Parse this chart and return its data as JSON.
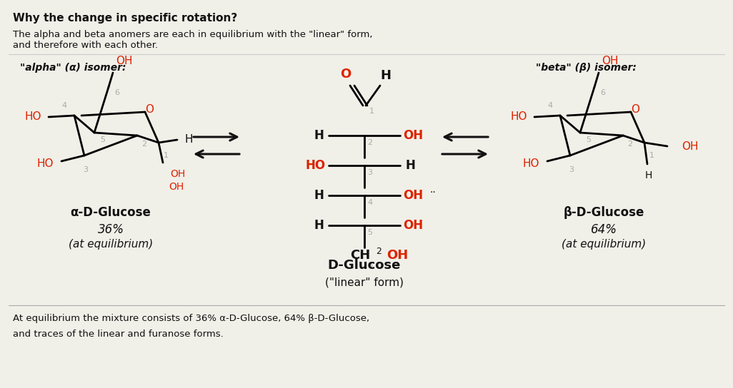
{
  "bg_color": "#f0efe8",
  "title": "Why the change in specific rotation?",
  "sub1": "The alpha and beta anomers are each in equilibrium with the \"linear\" form,",
  "sub2": "and therefore with each other.",
  "alpha_header": "\"alpha\" (α) isomer:",
  "beta_header": "\"beta\" (β) isomer:",
  "alpha_name": "α-D-Glucose",
  "beta_name": "β-D-Glucose",
  "linear_name": "D-Glucose",
  "linear_sub": "(\"linear\" form)",
  "alpha_pct": "36%",
  "alpha_eq": "(at equilibrium)",
  "beta_pct": "64%",
  "beta_eq": "(at equilibrium)",
  "bottom1": "At equilibrium the mixture consists of 36% α-D-Glucose, 64% β-D-Glucose,",
  "bottom2": "and traces of the linear and furanose forms.",
  "red": "#dd2200",
  "black": "#111111",
  "gray": "#aaaaaa"
}
